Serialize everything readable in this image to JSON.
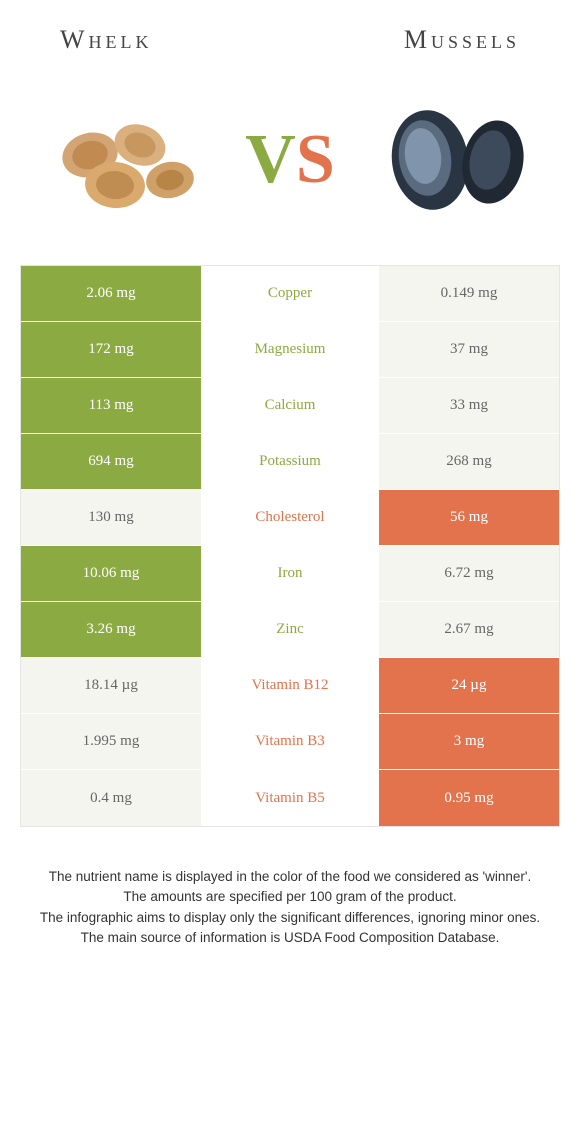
{
  "header": {
    "left": "Whelk",
    "right": "Mussels"
  },
  "vs": {
    "v": "V",
    "s": "S"
  },
  "colors": {
    "left": "#8bab42",
    "right": "#e2734c",
    "loser_bg": "#f5f5f0"
  },
  "rows": [
    {
      "left": "2.06 mg",
      "name": "Copper",
      "right": "0.149 mg",
      "winner": "left"
    },
    {
      "left": "172 mg",
      "name": "Magnesium",
      "right": "37 mg",
      "winner": "left"
    },
    {
      "left": "113 mg",
      "name": "Calcium",
      "right": "33 mg",
      "winner": "left"
    },
    {
      "left": "694 mg",
      "name": "Potassium",
      "right": "268 mg",
      "winner": "left"
    },
    {
      "left": "130 mg",
      "name": "Cholesterol",
      "right": "56 mg",
      "winner": "right"
    },
    {
      "left": "10.06 mg",
      "name": "Iron",
      "right": "6.72 mg",
      "winner": "left"
    },
    {
      "left": "3.26 mg",
      "name": "Zinc",
      "right": "2.67 mg",
      "winner": "left"
    },
    {
      "left": "18.14 µg",
      "name": "Vitamin B12",
      "right": "24 µg",
      "winner": "right"
    },
    {
      "left": "1.995 mg",
      "name": "Vitamin B3",
      "right": "3 mg",
      "winner": "right"
    },
    {
      "left": "0.4 mg",
      "name": "Vitamin B5",
      "right": "0.95 mg",
      "winner": "right"
    }
  ],
  "footer": {
    "line1": "The nutrient name is displayed in the color of the food we considered as 'winner'.",
    "line2": "The amounts are specified per 100 gram of the product.",
    "line3": "The infographic aims to display only the significant differences, ignoring minor ones.",
    "line4": "The main source of information is USDA Food Composition Database."
  }
}
